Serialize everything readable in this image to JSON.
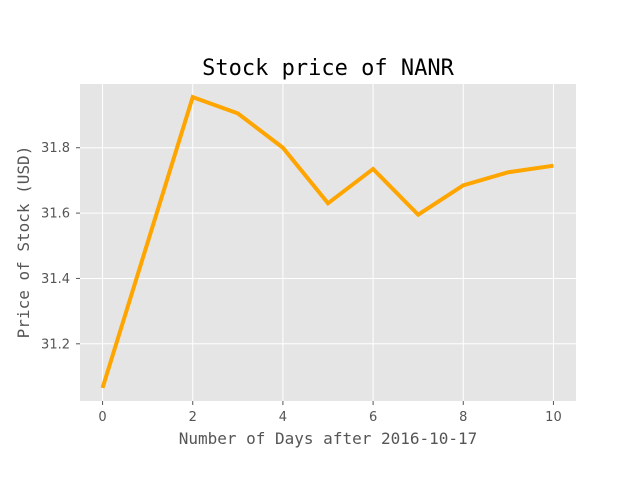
{
  "chart_data": {
    "type": "line",
    "title": "Stock price of NANR",
    "xlabel": "Number of Days after 2016-10-17",
    "ylabel": "Price of Stock (USD)",
    "x": [
      0,
      1,
      2,
      3,
      4,
      5,
      6,
      7,
      8,
      9,
      10
    ],
    "series": [
      {
        "values": [
          31.065,
          31.51,
          31.955,
          31.905,
          31.8,
          31.63,
          31.735,
          31.595,
          31.685,
          31.725,
          31.745
        ],
        "color": "#FFA500"
      }
    ],
    "xlim": [
      -0.5,
      10.5
    ],
    "ylim": [
      31.025,
      31.995
    ],
    "xticks": [
      0,
      2,
      4,
      6,
      8,
      10
    ],
    "xtick_labels": [
      "0",
      "2",
      "4",
      "6",
      "8",
      "10"
    ],
    "yticks": [
      31.2,
      31.4,
      31.6,
      31.8
    ],
    "ytick_labels": [
      "31.2",
      "31.4",
      "31.6",
      "31.8"
    ],
    "grid": true,
    "style": "ggplot",
    "colors": {
      "plot_background": "#E5E5E5",
      "grid": "#FFFFFF",
      "text": "#555555"
    }
  }
}
